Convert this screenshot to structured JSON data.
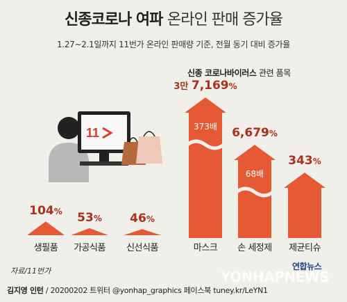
{
  "header": {
    "title_bold": "신종코로나 여파",
    "title_light": "온라인 판매 증가율",
    "subtitle": "1.27~2.1일까지 11번가 온라인 판매량 기준, 전월 동기 대비 증가율"
  },
  "illustration": {
    "screen_text": "11"
  },
  "related_label_bold": "신종 코로나바이러스",
  "related_label_rest": " 관련 품목",
  "source": "자료/11번가",
  "credits": {
    "author": "김지영 인턴",
    "rest": " / 20200202  트위터 @yonhap_graphics  페이스북 tuney.kr/LeYN1"
  },
  "logo": "연합뉴스",
  "watermark": "YONHAPNEWS",
  "colors": {
    "arrow": "#e55a35",
    "value": "#a8311f",
    "background": "#f0efe9"
  },
  "chart_data": [
    {
      "type": "bar",
      "title": "",
      "categories": [
        "생필품",
        "가공식품",
        "신선식품"
      ],
      "values": [
        104,
        53,
        46
      ],
      "value_labels": [
        {
          "num": "104",
          "unit": "%"
        },
        {
          "num": "53",
          "unit": "%"
        },
        {
          "num": "46",
          "unit": "%"
        }
      ],
      "unit": "%"
    },
    {
      "type": "bar",
      "title": "신종 코로나바이러스 관련 품목",
      "categories": [
        "마스크",
        "손 세정제",
        "제균티슈"
      ],
      "values": [
        37169,
        6679,
        343
      ],
      "value_labels": [
        {
          "pre": "3만 ",
          "num": "7,169",
          "unit": "%"
        },
        {
          "pre": "",
          "num": "6,679",
          "unit": "%"
        },
        {
          "pre": "",
          "num": "343",
          "unit": "%"
        }
      ],
      "multipliers": [
        "373배",
        "68배",
        ""
      ],
      "unit": "%"
    }
  ]
}
